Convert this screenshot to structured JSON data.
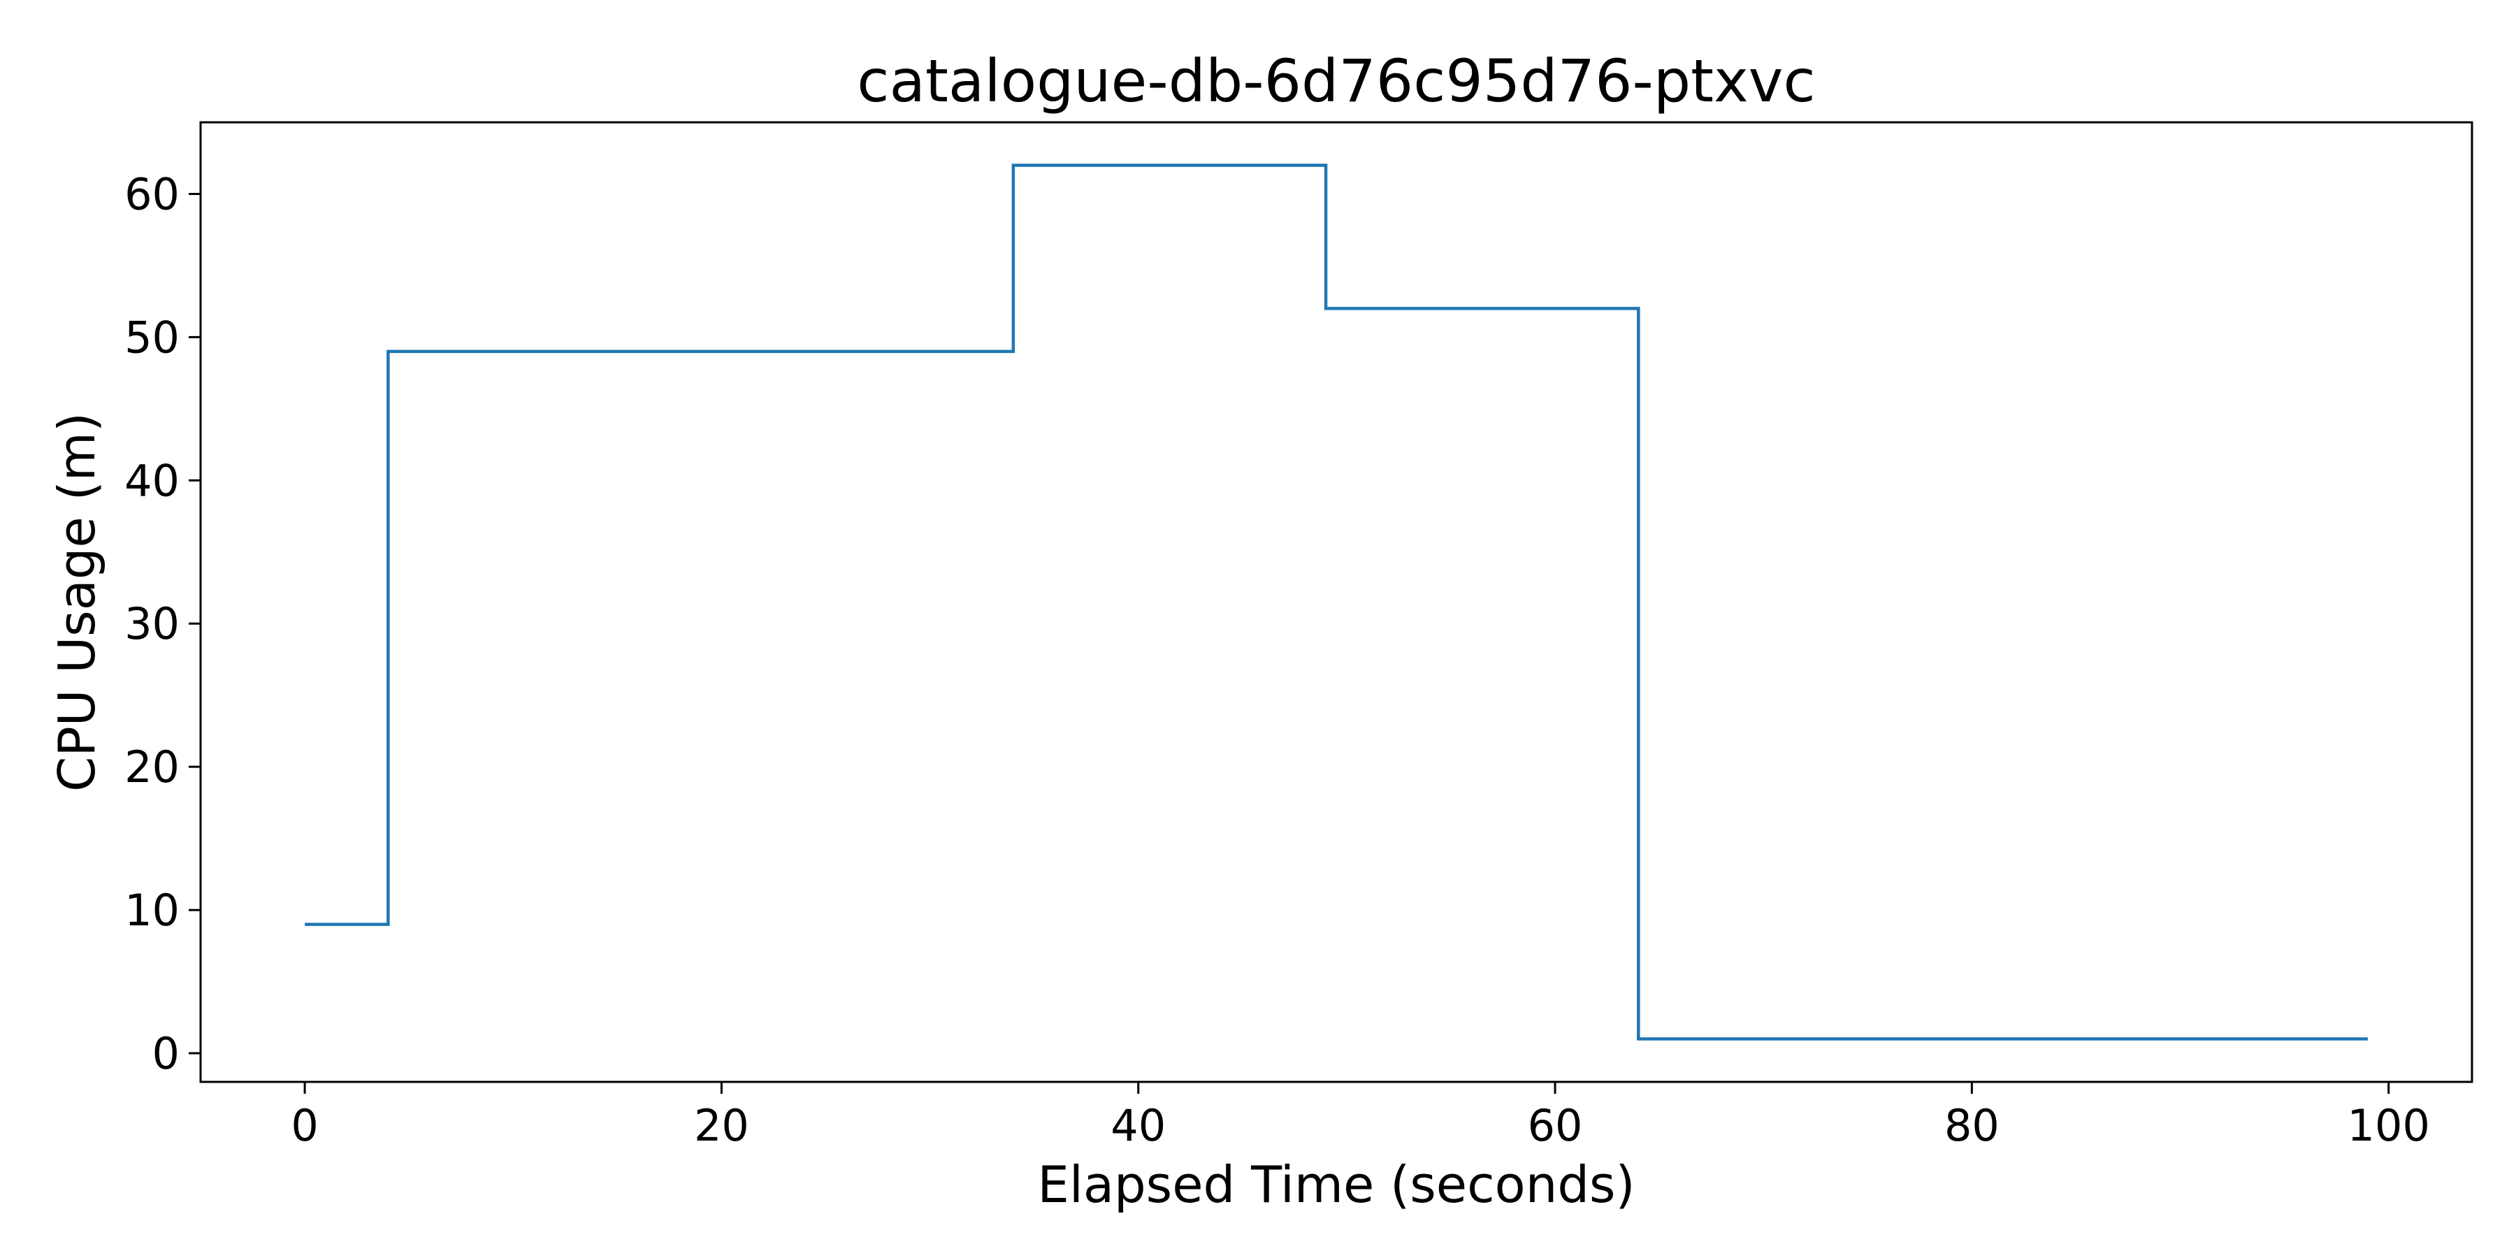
{
  "chart_data": {
    "type": "line",
    "drawstyle": "steps-post",
    "title": "catalogue-db-6d76c95d76-ptxvc",
    "xlabel": "Elapsed Time (seconds)",
    "ylabel": "CPU Usage (m)",
    "xlim": [
      -5,
      104
    ],
    "ylim": [
      -2,
      65
    ],
    "xticks": [
      0,
      20,
      40,
      60,
      80,
      100
    ],
    "yticks": [
      0,
      10,
      20,
      30,
      40,
      50,
      60
    ],
    "grid": false,
    "legend": false,
    "colors": {
      "line": "#1f77b4"
    },
    "series": [
      {
        "x": [
          0,
          4,
          34,
          49,
          64,
          99
        ],
        "y": [
          9,
          49,
          62,
          52,
          1,
          1
        ]
      }
    ]
  }
}
